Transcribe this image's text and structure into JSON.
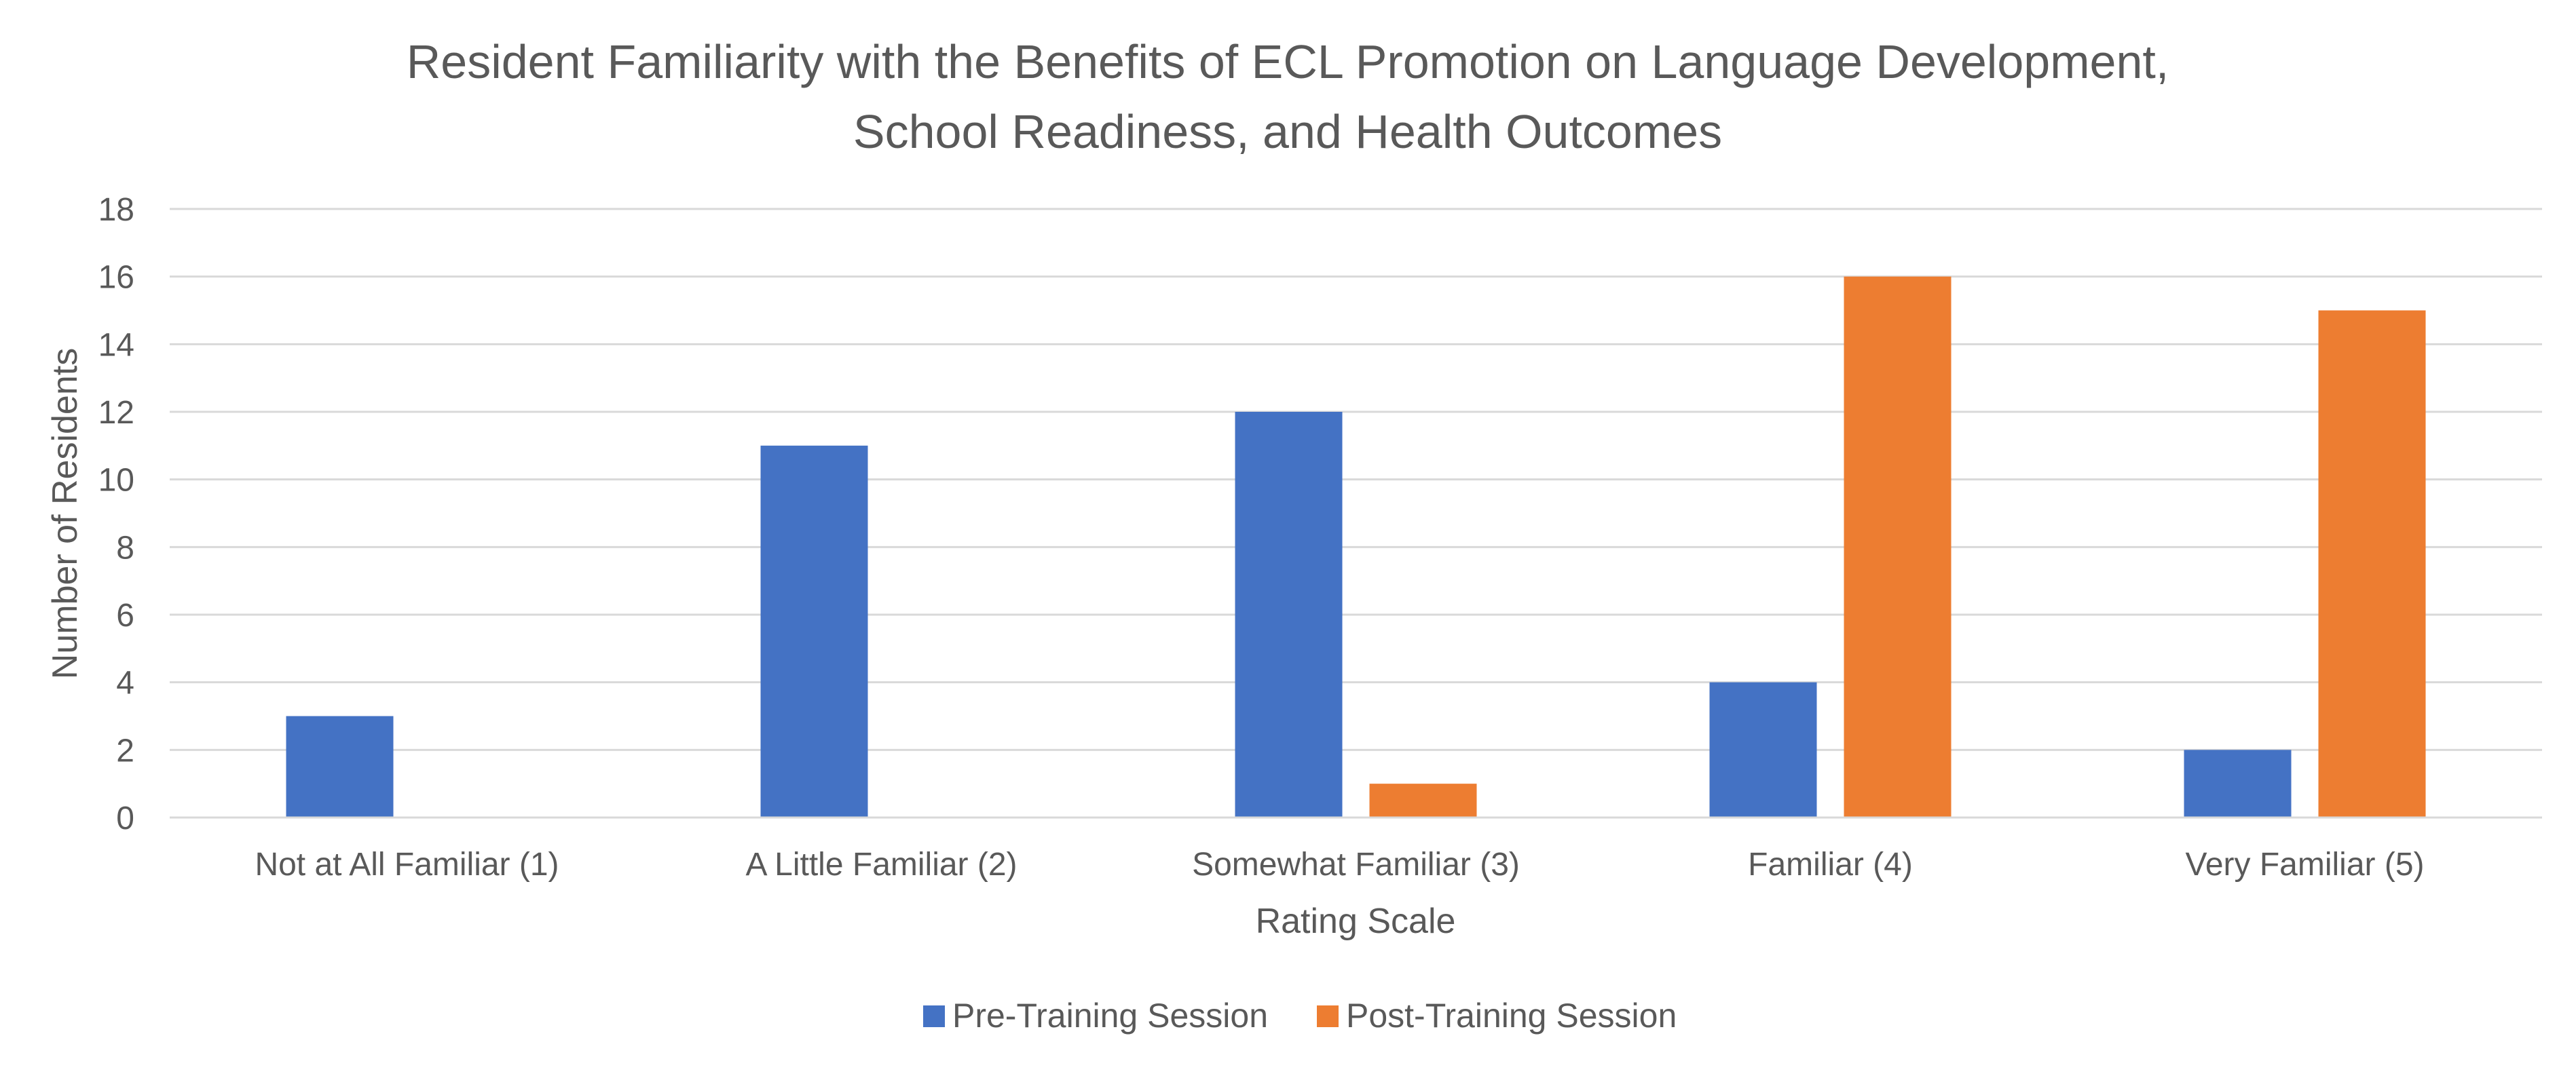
{
  "chart_data": {
    "type": "bar",
    "title_lines": [
      "Resident Familiarity with the Benefits of ECL Promotion on Language Development,",
      "School Readiness, and Health Outcomes"
    ],
    "xlabel": "Rating Scale",
    "ylabel": "Number of Residents",
    "ylim": [
      0,
      18
    ],
    "yticks": [
      "0",
      "2",
      "4",
      "6",
      "8",
      "10",
      "12",
      "14",
      "16",
      "18"
    ],
    "grid": true,
    "legend_position": "bottom",
    "categories": [
      "Not at All Familiar (1)",
      "A Little Familiar (2)",
      "Somewhat Familiar (3)",
      "Familiar (4)",
      "Very Familiar (5)"
    ],
    "series": [
      {
        "name": "Pre-Training Session",
        "color": "#4472C4",
        "values": [
          3,
          11,
          12,
          4,
          2
        ]
      },
      {
        "name": "Post-Training Session",
        "color": "#ED7D31",
        "values": [
          0,
          0,
          1,
          16,
          15
        ]
      }
    ]
  }
}
